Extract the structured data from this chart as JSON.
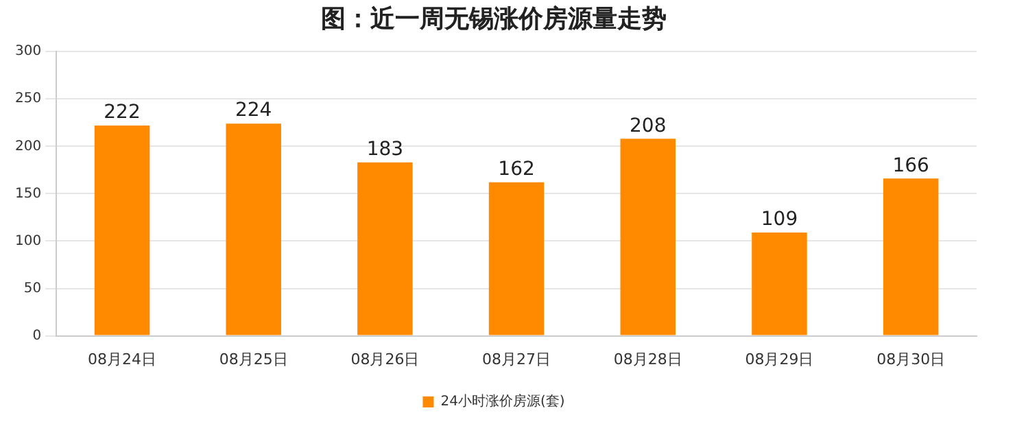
{
  "chart_data": {
    "type": "bar",
    "title": "图：近一周无锡涨价房源量走势",
    "categories": [
      "08月24日",
      "08月25日",
      "08月26日",
      "08月27日",
      "08月28日",
      "08月29日",
      "08月30日"
    ],
    "series": [
      {
        "name": "24小时涨价房源(套)",
        "color": "#ff8a00",
        "values": [
          222,
          224,
          183,
          162,
          208,
          109,
          166
        ]
      }
    ],
    "ylim": [
      0,
      300
    ],
    "yticks": [
      0,
      50,
      100,
      150,
      200,
      250,
      300
    ],
    "grid": "y",
    "legend": "bottom",
    "data_labels": true
  }
}
